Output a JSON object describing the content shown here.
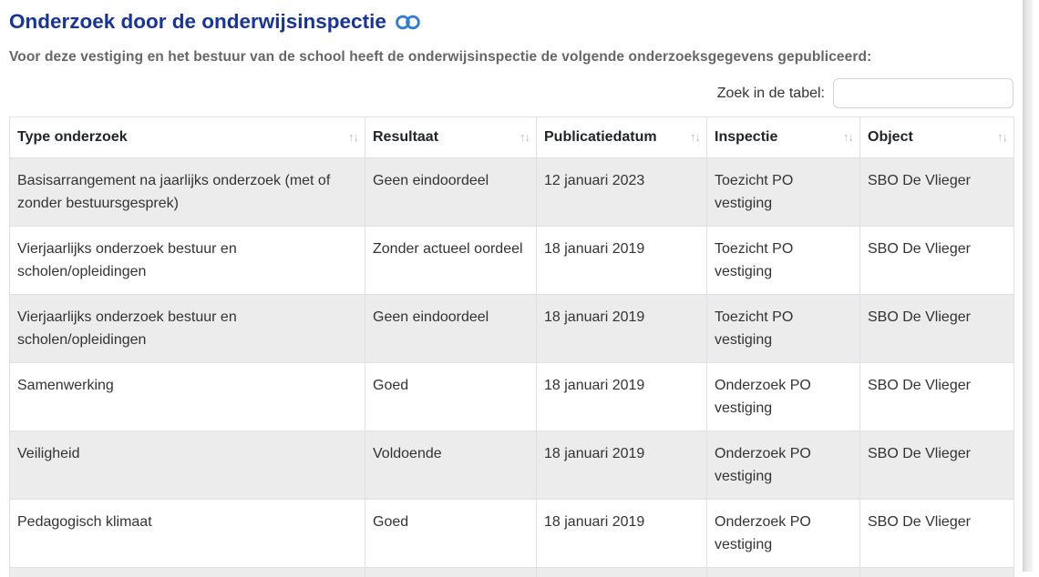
{
  "page": {
    "title": "Onderzoek door de onderwijsinspectie",
    "intro": "Voor deze vestiging en het bestuur van de school heeft de onderwijsinspectie de volgende onderzoeksgegevens gepubliceerd:",
    "search_label": "Zoek in de tabel:",
    "search_value": ""
  },
  "table": {
    "sort_icon": "↑↓",
    "columns": [
      "Type onderzoek",
      "Resultaat",
      "Publicatiedatum",
      "Inspectie",
      "Object"
    ],
    "rows": [
      [
        "Basisarrangement na jaarlijks onderzoek (met of zonder bestuursgesprek)",
        "Geen eindoordeel",
        "12 januari 2023",
        "Toezicht PO vestiging",
        "SBO De Vlieger"
      ],
      [
        "Vierjaarlijks onderzoek bestuur en scholen/opleidingen",
        "Zonder actueel oordeel",
        "18 januari 2019",
        "Toezicht PO vestiging",
        "SBO De Vlieger"
      ],
      [
        "Vierjaarlijks onderzoek bestuur en scholen/opleidingen",
        "Geen eindoordeel",
        "18 januari 2019",
        "Toezicht PO vestiging",
        "SBO De Vlieger"
      ],
      [
        "Samenwerking",
        "Goed",
        "18 januari 2019",
        "Onderzoek PO vestiging",
        "SBO De Vlieger"
      ],
      [
        "Veiligheid",
        "Voldoende",
        "18 januari 2019",
        "Onderzoek PO vestiging",
        "SBO De Vlieger"
      ],
      [
        "Pedagogisch klimaat",
        "Goed",
        "18 januari 2019",
        "Onderzoek PO vestiging",
        "SBO De Vlieger"
      ]
    ]
  },
  "colors": {
    "title": "#16349c",
    "link_icon": "#2e7cd6",
    "stripe": "#ececec",
    "border": "#dee2e6"
  }
}
